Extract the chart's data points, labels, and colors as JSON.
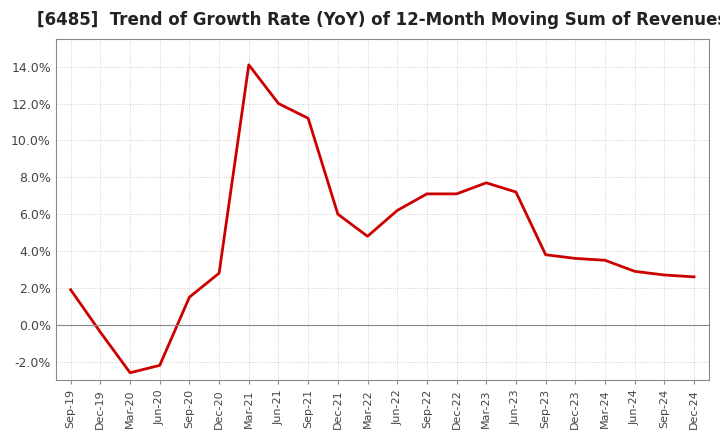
{
  "title": "[6485]  Trend of Growth Rate (YoY) of 12-Month Moving Sum of Revenues",
  "title_fontsize": 12,
  "line_color": "#cc0000",
  "background_color": "#ffffff",
  "grid_color": "#bbbbbb",
  "ylim": [
    -0.03,
    0.155
  ],
  "yticks": [
    -0.02,
    0.0,
    0.02,
    0.04,
    0.06,
    0.08,
    0.1,
    0.12,
    0.14
  ],
  "ytick_labels": [
    "-2.0%",
    "0.0%",
    "2.0%",
    "4.0%",
    "6.0%",
    "8.0%",
    "10.0%",
    "12.0%",
    "14.0%"
  ],
  "x_labels": [
    "Sep-19",
    "Dec-19",
    "Mar-20",
    "Jun-20",
    "Sep-20",
    "Dec-20",
    "Mar-21",
    "Jun-21",
    "Sep-21",
    "Dec-21",
    "Mar-22",
    "Jun-22",
    "Sep-22",
    "Dec-22",
    "Mar-23",
    "Jun-23",
    "Sep-23",
    "Dec-23",
    "Mar-24",
    "Jun-24",
    "Sep-24",
    "Dec-24"
  ],
  "values": [
    0.019,
    -0.004,
    -0.026,
    -0.022,
    0.015,
    0.028,
    0.141,
    0.12,
    0.112,
    0.06,
    0.048,
    0.062,
    0.071,
    0.071,
    0.077,
    0.072,
    0.038,
    0.036,
    0.035,
    0.029,
    0.027,
    0.026
  ]
}
